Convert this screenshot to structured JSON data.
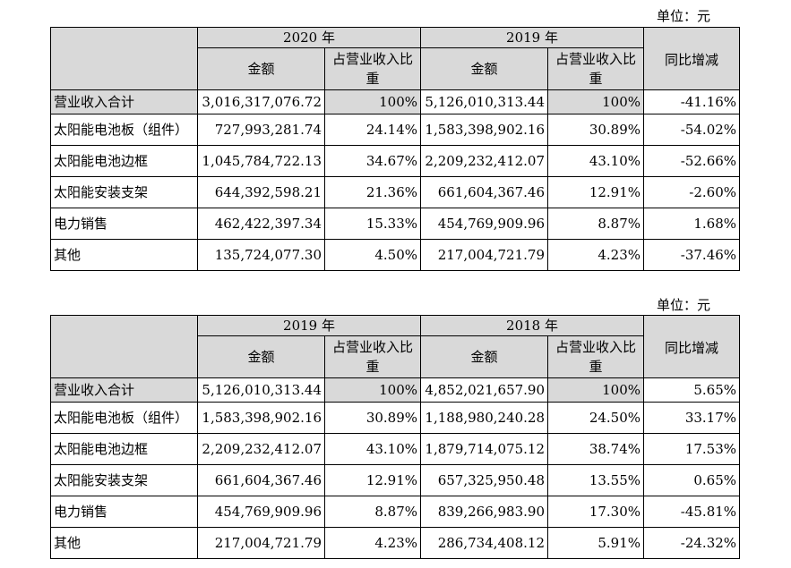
{
  "tables": [
    {
      "unit": "单位：元",
      "year_a": "2020 年",
      "year_b": "2019 年",
      "col_amount": "金额",
      "col_ratio": "占营业收入比重",
      "col_yoy": "同比增减",
      "rows": [
        {
          "label": "营业收入合计",
          "amount_a": "3,016,317,076.72",
          "ratio_a": "100%",
          "amount_b": "5,126,010,313.44",
          "ratio_b": "100%",
          "yoy": "-41.16%"
        },
        {
          "label": "太阳能电池板（组件）",
          "amount_a": "727,993,281.74",
          "ratio_a": "24.14%",
          "amount_b": "1,583,398,902.16",
          "ratio_b": "30.89%",
          "yoy": "-54.02%"
        },
        {
          "label": "太阳能电池边框",
          "amount_a": "1,045,784,722.13",
          "ratio_a": "34.67%",
          "amount_b": "2,209,232,412.07",
          "ratio_b": "43.10%",
          "yoy": "-52.66%"
        },
        {
          "label": "太阳能安装支架",
          "amount_a": "644,392,598.21",
          "ratio_a": "21.36%",
          "amount_b": "661,604,367.46",
          "ratio_b": "12.91%",
          "yoy": "-2.60%"
        },
        {
          "label": "电力销售",
          "amount_a": "462,422,397.34",
          "ratio_a": "15.33%",
          "amount_b": "454,769,909.96",
          "ratio_b": "8.87%",
          "yoy": "1.68%"
        },
        {
          "label": "其他",
          "amount_a": "135,724,077.30",
          "ratio_a": "4.50%",
          "amount_b": "217,004,721.79",
          "ratio_b": "4.23%",
          "yoy": "-37.46%"
        }
      ]
    },
    {
      "unit": "单位：元",
      "year_a": "2019 年",
      "year_b": "2018 年",
      "col_amount": "金额",
      "col_ratio": "占营业收入比重",
      "col_yoy": "同比增减",
      "rows": [
        {
          "label": "营业收入合计",
          "amount_a": "5,126,010,313.44",
          "ratio_a": "100%",
          "amount_b": "4,852,021,657.90",
          "ratio_b": "100%",
          "yoy": "5.65%"
        },
        {
          "label": "太阳能电池板（组件）",
          "amount_a": "1,583,398,902.16",
          "ratio_a": "30.89%",
          "amount_b": "1,188,980,240.28",
          "ratio_b": "24.50%",
          "yoy": "33.17%"
        },
        {
          "label": "太阳能电池边框",
          "amount_a": "2,209,232,412.07",
          "ratio_a": "43.10%",
          "amount_b": "1,879,714,075.12",
          "ratio_b": "38.74%",
          "yoy": "17.53%"
        },
        {
          "label": "太阳能安装支架",
          "amount_a": "661,604,367.46",
          "ratio_a": "12.91%",
          "amount_b": "657,325,950.48",
          "ratio_b": "13.55%",
          "yoy": "0.65%"
        },
        {
          "label": "电力销售",
          "amount_a": "454,769,909.96",
          "ratio_a": "8.87%",
          "amount_b": "839,266,983.90",
          "ratio_b": "17.30%",
          "yoy": "-45.81%"
        },
        {
          "label": "其他",
          "amount_a": "217,004,721.79",
          "ratio_a": "4.23%",
          "amount_b": "286,734,408.12",
          "ratio_b": "5.91%",
          "yoy": "-24.32%"
        }
      ]
    }
  ]
}
